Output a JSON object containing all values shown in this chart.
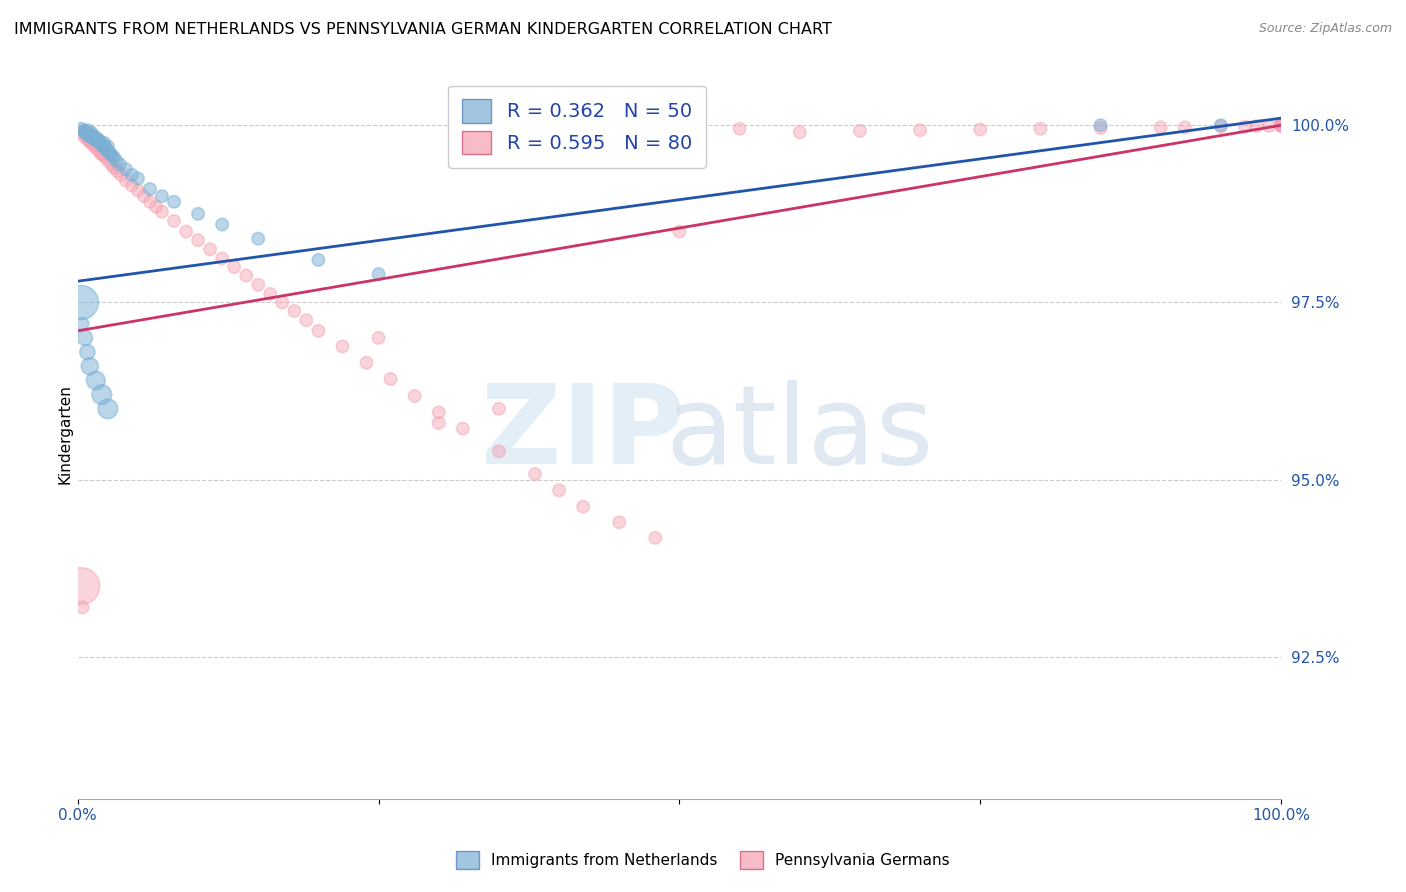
{
  "title": "IMMIGRANTS FROM NETHERLANDS VS PENNSYLVANIA GERMAN KINDERGARTEN CORRELATION CHART",
  "source": "Source: ZipAtlas.com",
  "ylabel": "Kindergarten",
  "yticks": [
    "92.5%",
    "95.0%",
    "97.5%",
    "100.0%"
  ],
  "ytick_values": [
    0.925,
    0.95,
    0.975,
    1.0
  ],
  "xlim": [
    0.0,
    1.0
  ],
  "ylim": [
    0.905,
    1.008
  ],
  "legend_blue_label": "R = 0.362   N = 50",
  "legend_pink_label": "R = 0.595   N = 80",
  "legend_label1": "Immigrants from Netherlands",
  "legend_label2": "Pennsylvania Germans",
  "blue_color": "#7BAFD4",
  "pink_color": "#F4A0B0",
  "blue_line_color": "#2255AA",
  "pink_line_color": "#CC3366",
  "blue_trend": [
    0.0,
    1.0,
    0.978,
    1.001
  ],
  "pink_trend": [
    0.0,
    1.0,
    0.971,
    1.0
  ],
  "blue_x": [
    0.003,
    0.005,
    0.006,
    0.007,
    0.008,
    0.009,
    0.01,
    0.011,
    0.012,
    0.013,
    0.014,
    0.015,
    0.016,
    0.017,
    0.018,
    0.019,
    0.02,
    0.021,
    0.022,
    0.023,
    0.024,
    0.025,
    0.026,
    0.027,
    0.028,
    0.03,
    0.032,
    0.035,
    0.04,
    0.045,
    0.05,
    0.06,
    0.07,
    0.08,
    0.1,
    0.12,
    0.15,
    0.2,
    0.25,
    0.003,
    0.004,
    0.006,
    0.008,
    0.01,
    0.015,
    0.02,
    0.025,
    0.5,
    0.85,
    0.95
  ],
  "blue_y": [
    0.9995,
    0.9992,
    0.999,
    0.9988,
    0.9993,
    0.9985,
    0.9987,
    0.999,
    0.9982,
    0.9985,
    0.998,
    0.9983,
    0.9978,
    0.998,
    0.9975,
    0.9977,
    0.9972,
    0.997,
    0.9975,
    0.9968,
    0.9965,
    0.997,
    0.9962,
    0.996,
    0.9958,
    0.9955,
    0.995,
    0.9945,
    0.9938,
    0.993,
    0.9925,
    0.991,
    0.99,
    0.9892,
    0.9875,
    0.986,
    0.984,
    0.981,
    0.979,
    0.975,
    0.972,
    0.97,
    0.968,
    0.966,
    0.964,
    0.962,
    0.96,
    1.0,
    1.0,
    1.0
  ],
  "blue_sizes": [
    80,
    80,
    80,
    80,
    80,
    80,
    80,
    80,
    80,
    80,
    80,
    80,
    80,
    80,
    80,
    80,
    80,
    80,
    80,
    80,
    80,
    80,
    80,
    80,
    80,
    80,
    80,
    80,
    80,
    80,
    80,
    80,
    80,
    80,
    80,
    80,
    80,
    80,
    80,
    600,
    80,
    120,
    120,
    150,
    180,
    200,
    200,
    80,
    80,
    80
  ],
  "pink_x": [
    0.003,
    0.005,
    0.007,
    0.009,
    0.011,
    0.013,
    0.015,
    0.017,
    0.019,
    0.021,
    0.023,
    0.025,
    0.028,
    0.03,
    0.033,
    0.036,
    0.04,
    0.045,
    0.05,
    0.055,
    0.06,
    0.065,
    0.07,
    0.08,
    0.09,
    0.1,
    0.11,
    0.12,
    0.13,
    0.14,
    0.15,
    0.16,
    0.17,
    0.18,
    0.19,
    0.2,
    0.22,
    0.24,
    0.26,
    0.28,
    0.3,
    0.32,
    0.35,
    0.38,
    0.4,
    0.42,
    0.45,
    0.48,
    0.003,
    0.004,
    0.6,
    0.65,
    0.7,
    0.75,
    0.8,
    0.85,
    0.9,
    0.92,
    0.95,
    0.97,
    0.98,
    0.99,
    1.0,
    1.0,
    1.0,
    1.0,
    1.0,
    1.0,
    1.0,
    1.0,
    1.0,
    1.0,
    1.0,
    1.0,
    1.0,
    0.55,
    0.5,
    0.25,
    0.35,
    0.3
  ],
  "pink_y": [
    0.999,
    0.9985,
    0.9982,
    0.9978,
    0.9975,
    0.9972,
    0.9968,
    0.9965,
    0.996,
    0.9958,
    0.9955,
    0.995,
    0.9945,
    0.994,
    0.9935,
    0.993,
    0.9922,
    0.9915,
    0.9908,
    0.99,
    0.9892,
    0.9885,
    0.9878,
    0.9865,
    0.985,
    0.9838,
    0.9825,
    0.9812,
    0.98,
    0.9788,
    0.9775,
    0.9762,
    0.975,
    0.9738,
    0.9725,
    0.971,
    0.9688,
    0.9665,
    0.9642,
    0.9618,
    0.9595,
    0.9572,
    0.954,
    0.9508,
    0.9485,
    0.9462,
    0.944,
    0.9418,
    0.935,
    0.932,
    0.999,
    0.9992,
    0.9993,
    0.9994,
    0.9995,
    0.9996,
    0.9997,
    0.9997,
    0.9998,
    0.9998,
    0.9999,
    0.9999,
    1.0,
    1.0,
    1.0,
    1.0,
    1.0,
    1.0,
    1.0,
    1.0,
    1.0,
    1.0,
    1.0,
    1.0,
    1.0,
    0.9995,
    0.985,
    0.97,
    0.96,
    0.958
  ],
  "pink_sizes": [
    80,
    80,
    80,
    80,
    80,
    80,
    80,
    80,
    80,
    80,
    80,
    80,
    80,
    80,
    80,
    80,
    80,
    80,
    80,
    80,
    80,
    80,
    80,
    80,
    80,
    80,
    80,
    80,
    80,
    80,
    80,
    80,
    80,
    80,
    80,
    80,
    80,
    80,
    80,
    80,
    80,
    80,
    80,
    80,
    80,
    80,
    80,
    80,
    700,
    80,
    80,
    80,
    80,
    80,
    80,
    80,
    80,
    80,
    80,
    80,
    80,
    80,
    80,
    80,
    80,
    80,
    80,
    80,
    80,
    80,
    80,
    80,
    80,
    80,
    80,
    80,
    80,
    80,
    80,
    80
  ]
}
